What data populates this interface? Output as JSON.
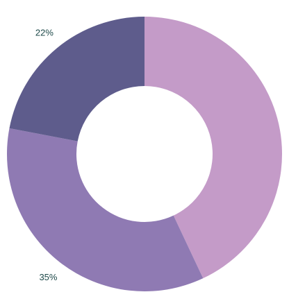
{
  "chart_data": {
    "type": "donut",
    "values": [
      43,
      35,
      22
    ],
    "value_labels": [
      null,
      "35%",
      "22%"
    ],
    "colors": [
      "#c49bc8",
      "#8f7ab3",
      "#5e5c8c"
    ]
  }
}
